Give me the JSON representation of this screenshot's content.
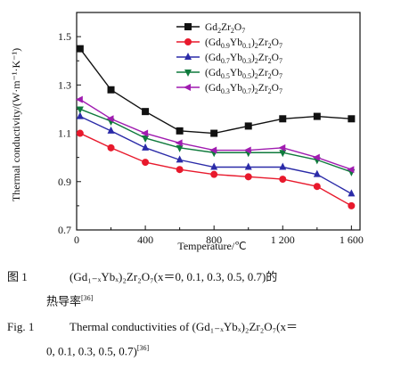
{
  "chart_data": {
    "type": "line",
    "xlabel": "Temperature/℃",
    "ylabel": "Thermal conductivity/(W·m⁻¹·K⁻¹)",
    "xlim": [
      0,
      1650
    ],
    "ylim": [
      0.7,
      1.6
    ],
    "x_ticks": [
      0,
      400,
      800,
      1200,
      1600
    ],
    "x_tick_labels": [
      "0",
      "400",
      "800",
      "1 200",
      "1 600"
    ],
    "y_ticks": [
      0.7,
      0.9,
      1.1,
      1.3,
      1.5
    ],
    "y_tick_labels": [
      "0.7",
      "0.9",
      "1.1",
      "1.3",
      "1.5"
    ],
    "x": [
      20,
      200,
      400,
      600,
      800,
      1000,
      1200,
      1400,
      1600
    ],
    "series": [
      {
        "name": "Gd2Zr2O7",
        "legend_parts": [
          [
            "Gd",
            ""
          ],
          [
            "2",
            "sub"
          ],
          [
            "Zr",
            ""
          ],
          [
            "2",
            "sub"
          ],
          [
            "O",
            ""
          ],
          [
            "7",
            "sub"
          ]
        ],
        "values": [
          1.45,
          1.28,
          1.19,
          1.11,
          1.1,
          1.13,
          1.16,
          1.17,
          1.16
        ],
        "color": "#111111",
        "marker": "square"
      },
      {
        "name": "(Gd0.9Yb0.1)2Zr2O7",
        "legend_parts": [
          [
            "(Gd",
            ""
          ],
          [
            "0.9",
            "sub"
          ],
          [
            "Yb",
            ""
          ],
          [
            "0.1",
            "sub"
          ],
          [
            ")",
            ""
          ],
          [
            "2",
            "sub"
          ],
          [
            "Zr",
            ""
          ],
          [
            "2",
            "sub"
          ],
          [
            "O",
            ""
          ],
          [
            "7",
            "sub"
          ]
        ],
        "values": [
          1.1,
          1.04,
          0.98,
          0.95,
          0.93,
          0.92,
          0.91,
          0.88,
          0.8
        ],
        "color": "#e8192c",
        "marker": "circle"
      },
      {
        "name": "(Gd0.7Yb0.3)2Zr2O7",
        "legend_parts": [
          [
            "(Gd",
            ""
          ],
          [
            "0.7",
            "sub"
          ],
          [
            "Yb",
            ""
          ],
          [
            "0.3",
            "sub"
          ],
          [
            ")",
            ""
          ],
          [
            "2",
            "sub"
          ],
          [
            "Zr",
            ""
          ],
          [
            "2",
            "sub"
          ],
          [
            "O",
            ""
          ],
          [
            "7",
            "sub"
          ]
        ],
        "values": [
          1.17,
          1.11,
          1.04,
          0.99,
          0.96,
          0.96,
          0.96,
          0.93,
          0.85
        ],
        "color": "#2b2ba8",
        "marker": "triangle-up"
      },
      {
        "name": "(Gd0.5Yb0.5)2Zr2O7",
        "legend_parts": [
          [
            "(Gd",
            ""
          ],
          [
            "0.5",
            "sub"
          ],
          [
            "Yb",
            ""
          ],
          [
            "0.5",
            "sub"
          ],
          [
            ")",
            ""
          ],
          [
            "2",
            "sub"
          ],
          [
            "Zr",
            ""
          ],
          [
            "2",
            "sub"
          ],
          [
            "O",
            ""
          ],
          [
            "7",
            "sub"
          ]
        ],
        "values": [
          1.2,
          1.15,
          1.08,
          1.04,
          1.02,
          1.02,
          1.02,
          0.99,
          0.94
        ],
        "color": "#0f7a3c",
        "marker": "triangle-down"
      },
      {
        "name": "(Gd0.3Yb0.7)2Zr2O7",
        "legend_parts": [
          [
            "(Gd",
            ""
          ],
          [
            "0.3",
            "sub"
          ],
          [
            "Yb",
            ""
          ],
          [
            "0.7",
            "sub"
          ],
          [
            ")",
            ""
          ],
          [
            "2",
            "sub"
          ],
          [
            "Zr",
            ""
          ],
          [
            "2",
            "sub"
          ],
          [
            "O",
            ""
          ],
          [
            "7",
            "sub"
          ]
        ],
        "values": [
          1.24,
          1.16,
          1.1,
          1.06,
          1.03,
          1.03,
          1.04,
          1.0,
          0.95
        ],
        "color": "#a01cb0",
        "marker": "triangle-left"
      }
    ],
    "legend_position": "top-right",
    "grid": false
  },
  "caption": {
    "cn_label": "图 1",
    "cn_text": "(Gd₁₋ₓYbₓ)₂Zr₂O₇(x＝0, 0.1, 0.3, 0.5, 0.7)的",
    "cn_text_2": "热导率",
    "cn_ref": "[36]",
    "en_label": "Fig. 1",
    "en_text": "Thermal conductivities of (Gd₁₋ₓYbₓ)₂Zr₂O₇(x＝",
    "en_text_2": "0, 0.1, 0.3, 0.5, 0.7)",
    "en_ref": "[36]"
  }
}
